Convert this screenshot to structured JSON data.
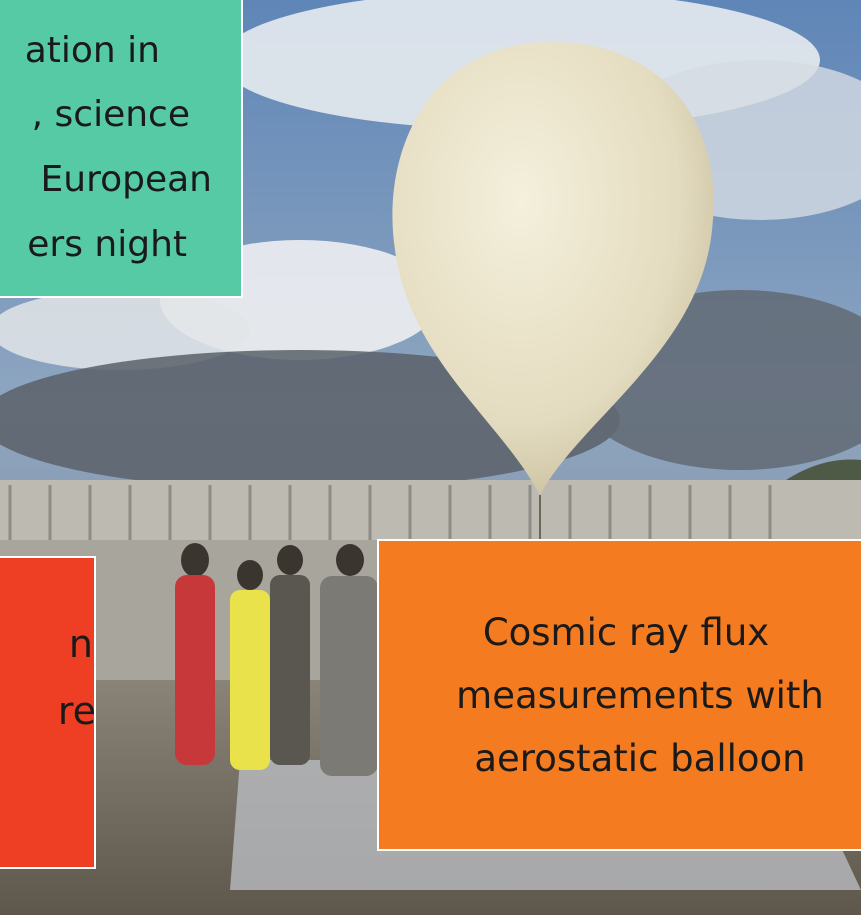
{
  "teal_box": {
    "lines": [
      "ation in",
      ", science",
      "European",
      "ers night"
    ]
  },
  "red_box": {
    "lines": [
      "n",
      "re"
    ]
  },
  "orange_box": {
    "lines": [
      "Cosmic ray flux",
      "measurements with",
      "aerostatic balloon"
    ]
  }
}
